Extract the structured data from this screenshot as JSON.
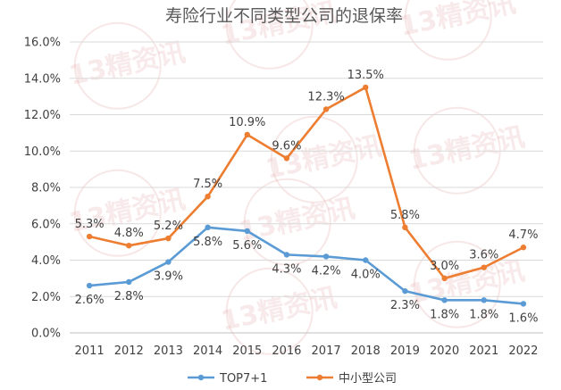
{
  "chart_data": {
    "type": "line",
    "title": "寿险行业不同类型公司的退保率",
    "watermark": "13精资讯",
    "categories": [
      "2011",
      "2012",
      "2013",
      "2014",
      "2015",
      "2016",
      "2017",
      "2018",
      "2019",
      "2020",
      "2021",
      "2022"
    ],
    "y_ticks": [
      "0.0%",
      "2.0%",
      "4.0%",
      "6.0%",
      "8.0%",
      "10.0%",
      "12.0%",
      "14.0%",
      "16.0%"
    ],
    "ylim": [
      0,
      16
    ],
    "grid": true,
    "legend_position": "bottom",
    "series": [
      {
        "name": "TOP7+1",
        "color": "#5b9bd5",
        "values": [
          2.6,
          2.8,
          3.9,
          5.8,
          5.6,
          4.3,
          4.2,
          4.0,
          2.3,
          1.8,
          1.8,
          1.6
        ],
        "labels": [
          "2.6%",
          "2.8%",
          "3.9%",
          "5.8%",
          "5.6%",
          "4.3%",
          "4.2%",
          "4.0%",
          "2.3%",
          "1.8%",
          "1.8%",
          "1.6%"
        ]
      },
      {
        "name": "中小型公司",
        "color": "#ed7d31",
        "values": [
          5.3,
          4.8,
          5.2,
          7.5,
          10.9,
          9.6,
          12.3,
          13.5,
          5.8,
          3.0,
          3.6,
          4.7
        ],
        "labels": [
          "5.3%",
          "4.8%",
          "5.2%",
          "7.5%",
          "10.9%",
          "9.6%",
          "12.3%",
          "13.5%",
          "5.8%",
          "3.0%",
          "3.6%",
          "4.7%"
        ]
      }
    ]
  }
}
